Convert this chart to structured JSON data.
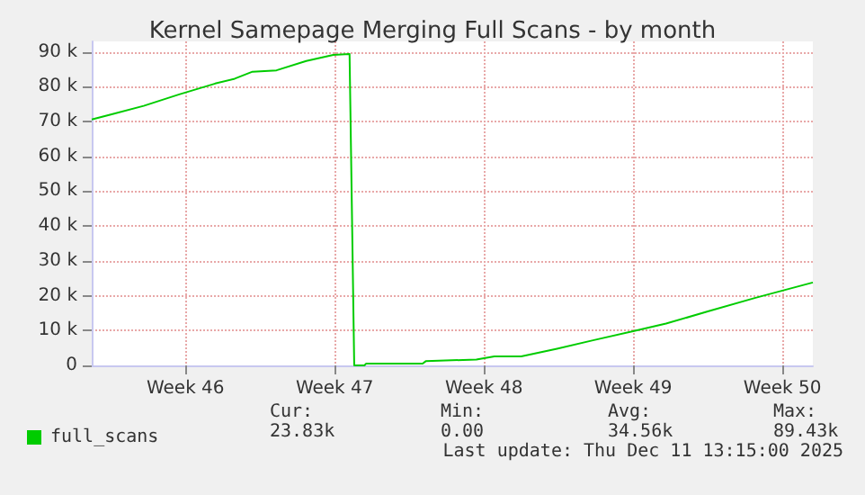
{
  "chart_data": {
    "type": "line",
    "title": "Kernel Samepage Merging Full Scans - by month",
    "x": [
      "2025-11-07T17:30",
      "2025-11-08T15:00",
      "2025-11-10T04:00",
      "2025-11-11T20:00",
      "2025-11-13T12:30",
      "2025-11-14T10:30",
      "2025-11-15T06:30",
      "2025-11-16T09:30",
      "2025-11-17T19:00",
      "2025-11-19T01:30",
      "2025-11-19T19:45",
      "2025-11-20T01:00",
      "2025-11-20T12:30",
      "2025-11-20T14:15",
      "2025-11-23T06:00",
      "2025-11-23T09:30",
      "2025-11-25T18:30",
      "2025-11-26T14:45",
      "2025-11-27T21:00",
      "2025-11-29T13:15",
      "2025-12-01T05:45",
      "2025-12-03T06:15",
      "2025-12-04T16:00",
      "2025-12-06T15:00",
      "2025-12-08T20:45",
      "2025-12-11T13:15"
    ],
    "series": [
      {
        "name": "full_scans",
        "color": "#00cc00",
        "values": [
          70600,
          72000,
          74500,
          77800,
          80900,
          82300,
          84300,
          84700,
          87400,
          89100,
          89400,
          0,
          0,
          500,
          500,
          1200,
          1700,
          2600,
          2600,
          4800,
          7200,
          10000,
          12000,
          15500,
          19400,
          23800
        ]
      }
    ],
    "xlim": [
      "2025-11-07T17:30",
      "2025-12-11T13:15"
    ],
    "xticks": [
      {
        "value": "2025-11-12T03:00",
        "label": "Week 46"
      },
      {
        "value": "2025-11-19T03:00",
        "label": "Week 47"
      },
      {
        "value": "2025-11-26T03:00",
        "label": "Week 48"
      },
      {
        "value": "2025-12-03T03:00",
        "label": "Week 49"
      },
      {
        "value": "2025-12-10T03:00",
        "label": "Week 50"
      }
    ],
    "ylim": [
      0,
      93000
    ],
    "yticks": [
      0,
      {
        "value": 10000,
        "label": "10 k"
      },
      {
        "value": 20000,
        "label": "20 k"
      },
      {
        "value": 30000,
        "label": "30 k"
      },
      {
        "value": 40000,
        "label": "40 k"
      },
      {
        "value": 50000,
        "label": "50 k"
      },
      {
        "value": 60000,
        "label": "60 k"
      },
      {
        "value": 70000,
        "label": "70 k"
      },
      {
        "value": 80000,
        "label": "80 k"
      },
      {
        "value": 90000,
        "label": "90 k"
      }
    ],
    "grid": true,
    "legend": "bottom left",
    "marker": "none",
    "line_style": "solid",
    "annotations": [
      "Cur:",
      "23.83k",
      "Min:",
      "0.00",
      "Avg:",
      "34.56k",
      "Max:",
      "89.43k",
      "Last update: Thu Dec 11 13:15:00 2025"
    ]
  }
}
